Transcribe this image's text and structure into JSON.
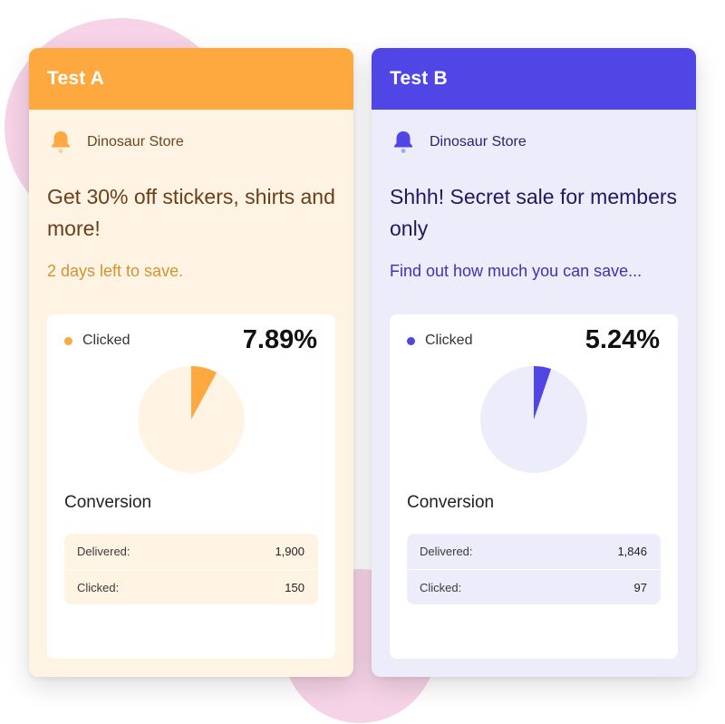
{
  "colors": {
    "test_a_accent": "#fea93f",
    "test_a_tint": "#fff3e3",
    "test_b_accent": "#4f46e5",
    "test_b_tint": "#edecfb"
  },
  "tests": [
    {
      "title": "Test A",
      "sender_icon": "bell-icon",
      "sender": "Dinosaur Store",
      "headline": "Get 30% off stickers, shirts and more!",
      "subline": "2 days left to save.",
      "legend_label": "Clicked",
      "percent": "7.89%",
      "percent_value": 7.89,
      "conversion_label": "Conversion",
      "metrics": [
        {
          "label": "Delivered:",
          "value": "1,900"
        },
        {
          "label": "Clicked:",
          "value": "150"
        }
      ]
    },
    {
      "title": "Test B",
      "sender_icon": "bell-icon",
      "sender": "Dinosaur Store",
      "headline": "Shhh! Secret sale for members only",
      "subline": "Find out how much you can save...",
      "legend_label": "Clicked",
      "percent": "5.24%",
      "percent_value": 5.24,
      "conversion_label": "Conversion",
      "metrics": [
        {
          "label": "Delivered:",
          "value": "1,846"
        },
        {
          "label": "Clicked:",
          "value": "97"
        }
      ]
    }
  ]
}
